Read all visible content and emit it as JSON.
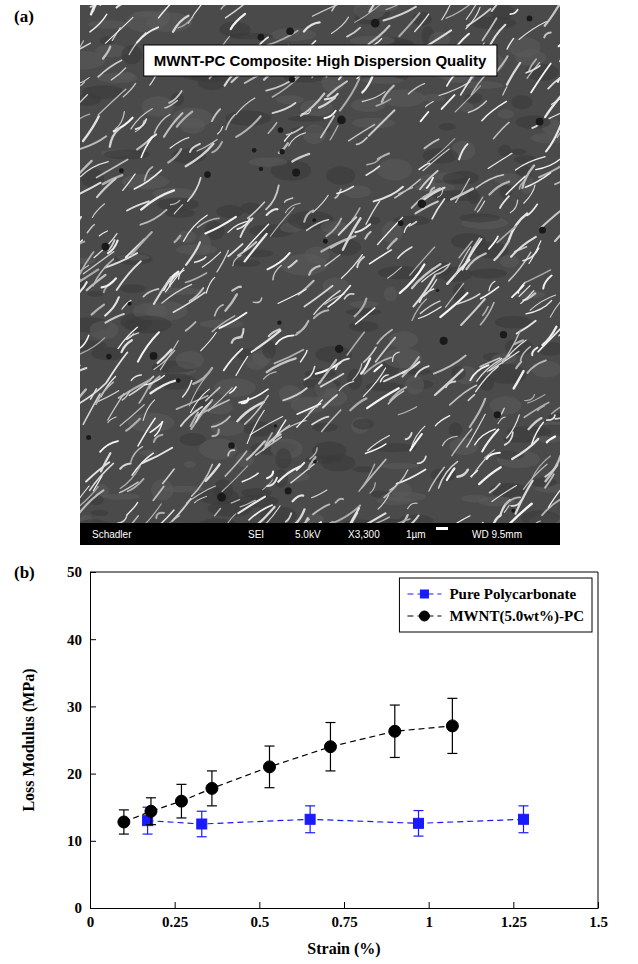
{
  "panels": {
    "a": {
      "label": "(a)",
      "caption": "MWNT-PC Composite: High Dispersion Quality",
      "info_bar": [
        "Schadler",
        "SEI",
        "5.0kV",
        "X3,300",
        "1µm",
        "WD 9.5mm"
      ]
    },
    "b": {
      "label": "(b)"
    }
  },
  "chart_data": {
    "type": "line",
    "x_label": "Strain (%)",
    "y_label": "Loss Modulus (MPa)",
    "xlim": [
      0,
      1.5
    ],
    "xticks": [
      0,
      0.25,
      0.5,
      0.75,
      1,
      1.25,
      1.5
    ],
    "ylim": [
      0,
      50
    ],
    "yticks": [
      0,
      10,
      20,
      30,
      40,
      50
    ],
    "grid": false,
    "legend": "upper right",
    "series": [
      {
        "name": "Pure Polycarbonate",
        "color": "#1a1aff",
        "marker": "square",
        "line_style": "dashed",
        "x": [
          0.17,
          0.33,
          0.65,
          0.97,
          1.28
        ],
        "values": [
          13.0,
          12.5,
          13.2,
          12.6,
          13.2
        ],
        "errors": [
          2.0,
          1.9,
          2.0,
          1.9,
          2.0
        ]
      },
      {
        "name": "MWNT(5.0wt%)-PC",
        "color": "#000000",
        "marker": "circle",
        "line_style": "dashed",
        "x": [
          0.1,
          0.18,
          0.27,
          0.36,
          0.53,
          0.71,
          0.9,
          1.07
        ],
        "values": [
          12.8,
          14.4,
          15.9,
          17.8,
          21.0,
          24.0,
          26.3,
          27.1
        ],
        "errors": [
          1.8,
          2.0,
          2.5,
          2.6,
          3.1,
          3.6,
          3.9,
          4.1
        ]
      }
    ]
  }
}
